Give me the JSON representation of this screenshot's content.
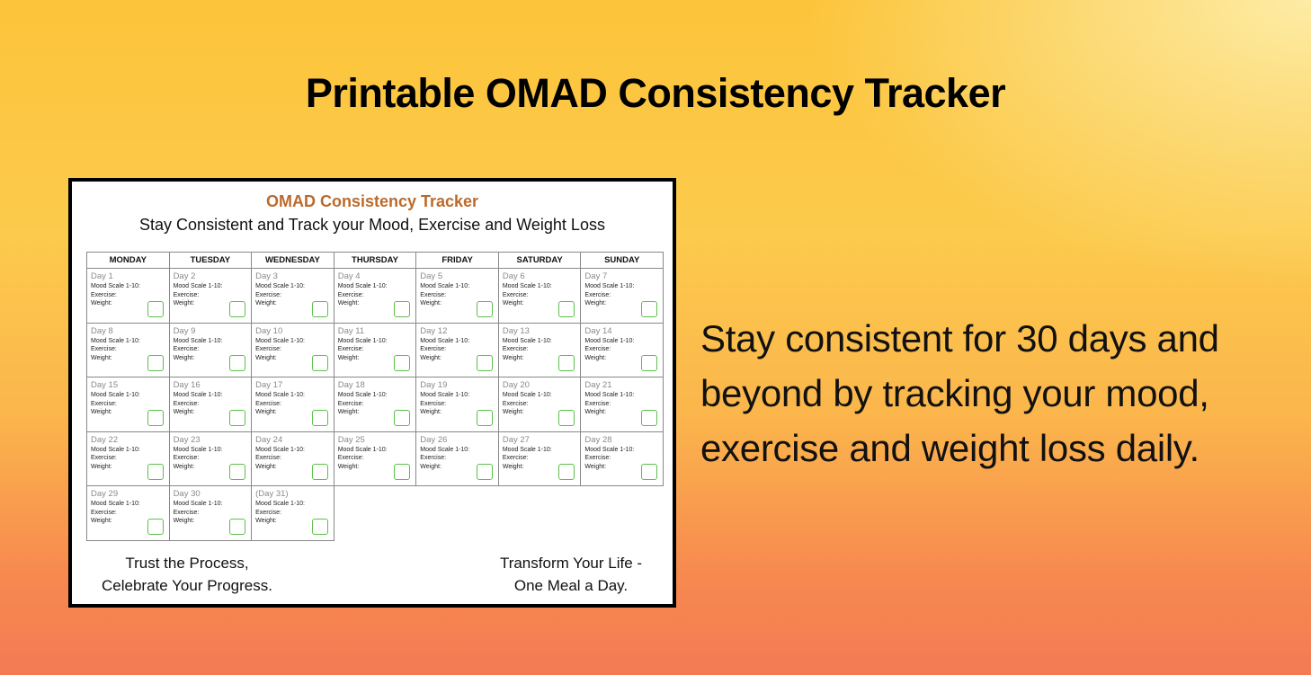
{
  "headline": "Printable OMAD Consistency Tracker",
  "tagline": "Stay consistent for 30 days and beyond by tracking your mood, exercise and weight loss daily.",
  "colors": {
    "title_accent": "#bb6a2c",
    "checkbox": "#5cc04a",
    "bg_top": "#fcc43a",
    "bg_bottom": "#f47a55"
  },
  "tracker": {
    "title": "OMAD Consistency Tracker",
    "subtitle": "Stay Consistent and Track your Mood, Exercise and Weight Loss",
    "weekdays": [
      "MONDAY",
      "TUESDAY",
      "WEDNESDAY",
      "THURSDAY",
      "FRIDAY",
      "SATURDAY",
      "SUNDAY"
    ],
    "fields": [
      "Mood Scale 1-10:",
      "Exercise:",
      "Weight:"
    ],
    "days": [
      "Day 1",
      "Day 2",
      "Day 3",
      "Day 4",
      "Day 5",
      "Day 6",
      "Day 7",
      "Day 8",
      "Day 9",
      "Day 10",
      "Day 11",
      "Day 12",
      "Day 13",
      "Day 14",
      "Day 15",
      "Day 16",
      "Day 17",
      "Day 18",
      "Day 19",
      "Day 20",
      "Day 21",
      "Day 22",
      "Day 23",
      "Day 24",
      "Day 25",
      "Day 26",
      "Day 27",
      "Day 28",
      "Day 29",
      "Day 30",
      "(Day 31)"
    ],
    "footer_left": [
      "Trust the Process,",
      "Celebrate Your Progress."
    ],
    "footer_right": [
      "Transform Your Life -",
      "One Meal a Day."
    ]
  }
}
